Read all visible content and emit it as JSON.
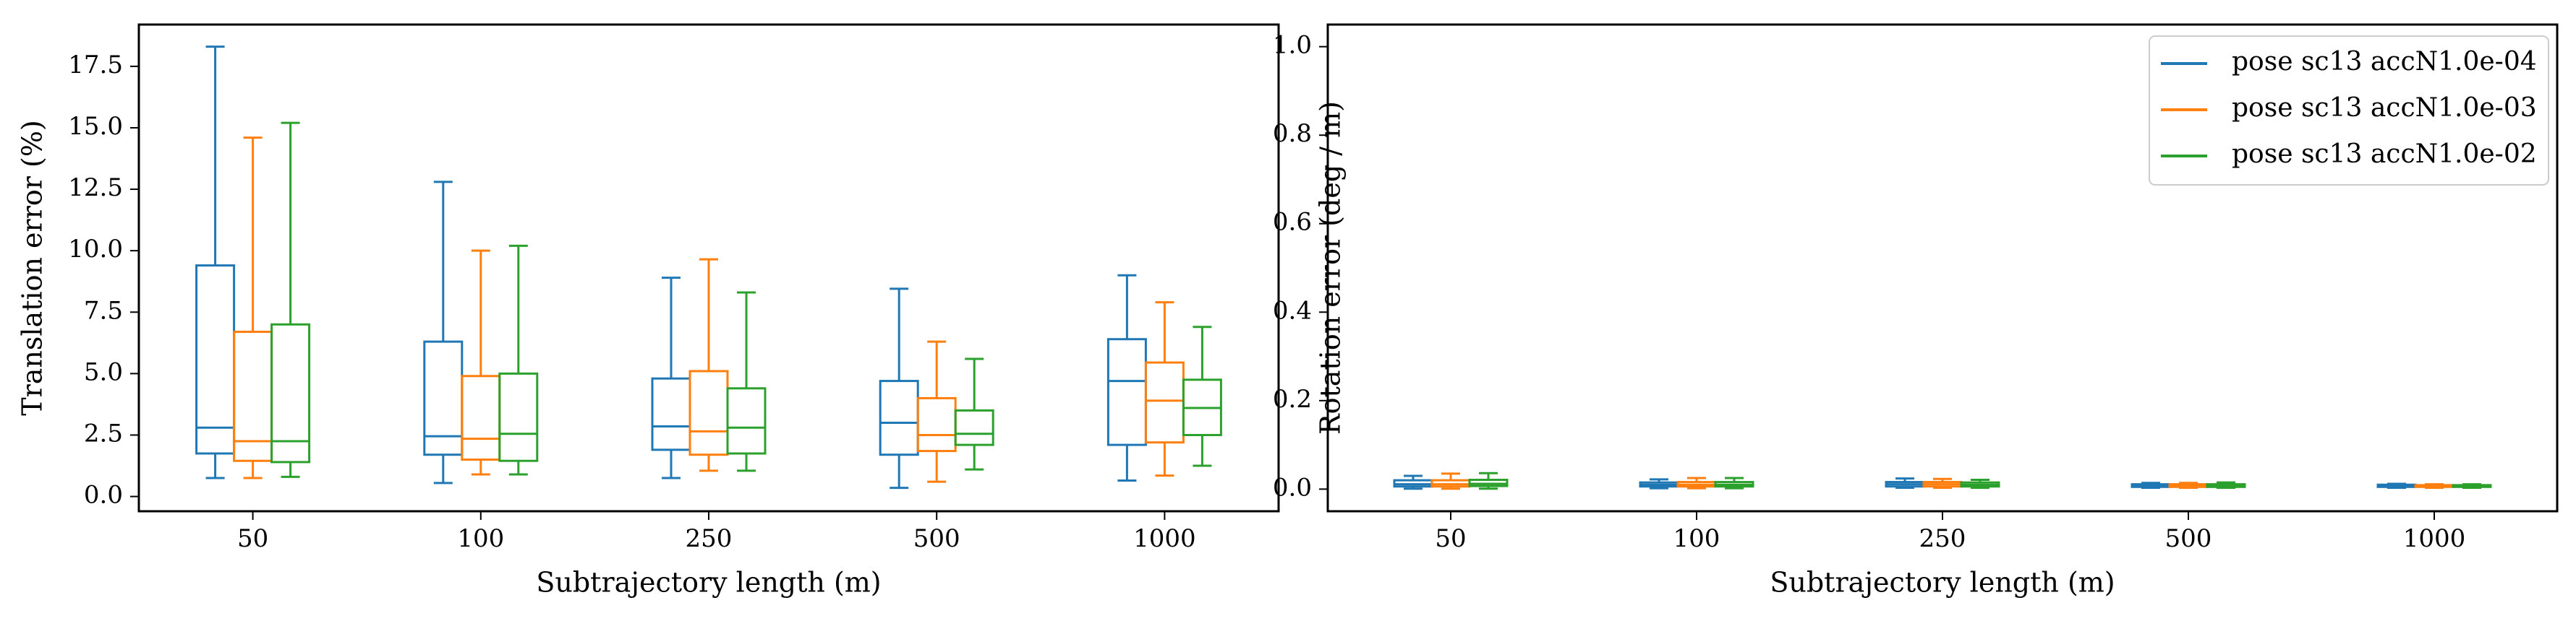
{
  "figure": {
    "background": "#ffffff"
  },
  "colors": {
    "blue": "#1f77b4",
    "orange": "#ff7f0e",
    "green": "#2ca02c"
  },
  "chart_data": [
    {
      "type": "box",
      "xlabel": "Subtrajectory length (m)",
      "ylabel": "Translation error (%)",
      "categories": [
        "50",
        "100",
        "250",
        "500",
        "1000"
      ],
      "ylim": [
        -0.6,
        19.2
      ],
      "yticks": [
        0.0,
        2.5,
        5.0,
        7.5,
        10.0,
        12.5,
        15.0,
        17.5
      ],
      "ytick_labels": [
        "0.0",
        "2.5",
        "5.0",
        "7.5",
        "10.0",
        "12.5",
        "15.0",
        "17.5"
      ],
      "grid": false,
      "series": [
        {
          "name": "pose sc13 accN1.0e-04",
          "color": "#1f77b4",
          "boxes": [
            {
              "whislo": 0.75,
              "q1": 1.75,
              "med": 2.8,
              "q3": 9.4,
              "whishi": 18.3
            },
            {
              "whislo": 0.55,
              "q1": 1.7,
              "med": 2.45,
              "q3": 6.3,
              "whishi": 12.8
            },
            {
              "whislo": 0.75,
              "q1": 1.9,
              "med": 2.85,
              "q3": 4.8,
              "whishi": 8.9
            },
            {
              "whislo": 0.35,
              "q1": 1.7,
              "med": 3.0,
              "q3": 4.7,
              "whishi": 8.45
            },
            {
              "whislo": 0.65,
              "q1": 2.1,
              "med": 4.7,
              "q3": 6.4,
              "whishi": 9.0
            }
          ]
        },
        {
          "name": "pose sc13 accN1.0e-03",
          "color": "#ff7f0e",
          "boxes": [
            {
              "whislo": 0.75,
              "q1": 1.45,
              "med": 2.25,
              "q3": 6.7,
              "whishi": 14.6
            },
            {
              "whislo": 0.9,
              "q1": 1.5,
              "med": 2.35,
              "q3": 4.9,
              "whishi": 10.0
            },
            {
              "whislo": 1.05,
              "q1": 1.7,
              "med": 2.65,
              "q3": 5.1,
              "whishi": 9.65
            },
            {
              "whislo": 0.6,
              "q1": 1.85,
              "med": 2.5,
              "q3": 4.0,
              "whishi": 6.3
            },
            {
              "whislo": 0.85,
              "q1": 2.2,
              "med": 3.9,
              "q3": 5.45,
              "whishi": 7.9
            }
          ]
        },
        {
          "name": "pose sc13 accN1.0e-02",
          "color": "#2ca02c",
          "boxes": [
            {
              "whislo": 0.8,
              "q1": 1.4,
              "med": 2.25,
              "q3": 7.0,
              "whishi": 15.2
            },
            {
              "whislo": 0.9,
              "q1": 1.45,
              "med": 2.55,
              "q3": 5.0,
              "whishi": 10.2
            },
            {
              "whislo": 1.05,
              "q1": 1.75,
              "med": 2.8,
              "q3": 4.4,
              "whishi": 8.3
            },
            {
              "whislo": 1.1,
              "q1": 2.1,
              "med": 2.55,
              "q3": 3.5,
              "whishi": 5.6
            },
            {
              "whislo": 1.25,
              "q1": 2.5,
              "med": 3.6,
              "q3": 4.75,
              "whishi": 6.9
            }
          ]
        }
      ]
    },
    {
      "type": "box",
      "xlabel": "Subtrajectory length (m)",
      "ylabel": "Rotation error (deg / m)",
      "categories": [
        "50",
        "100",
        "250",
        "500",
        "1000"
      ],
      "ylim": [
        -0.05,
        1.05
      ],
      "yticks": [
        0.0,
        0.2,
        0.4,
        0.6,
        0.8,
        1.0
      ],
      "ytick_labels": [
        "0.0",
        "0.2",
        "0.4",
        "0.6",
        "0.8",
        "1.0"
      ],
      "grid": false,
      "legend": {
        "placement": "upper-right"
      },
      "series": [
        {
          "name": "pose sc13 accN1.0e-04",
          "color": "#1f77b4",
          "boxes": [
            {
              "whislo": 0.001,
              "q1": 0.006,
              "med": 0.011,
              "q3": 0.02,
              "whishi": 0.03
            },
            {
              "whislo": 0.002,
              "q1": 0.006,
              "med": 0.01,
              "q3": 0.015,
              "whishi": 0.022
            },
            {
              "whislo": 0.003,
              "q1": 0.006,
              "med": 0.011,
              "q3": 0.016,
              "whishi": 0.024
            },
            {
              "whislo": 0.003,
              "q1": 0.005,
              "med": 0.008,
              "q3": 0.011,
              "whishi": 0.014
            },
            {
              "whislo": 0.003,
              "q1": 0.005,
              "med": 0.007,
              "q3": 0.01,
              "whishi": 0.012
            }
          ]
        },
        {
          "name": "pose sc13 accN1.0e-03",
          "color": "#ff7f0e",
          "boxes": [
            {
              "whislo": 0.001,
              "q1": 0.006,
              "med": 0.011,
              "q3": 0.02,
              "whishi": 0.035
            },
            {
              "whislo": 0.002,
              "q1": 0.006,
              "med": 0.01,
              "q3": 0.016,
              "whishi": 0.025
            },
            {
              "whislo": 0.003,
              "q1": 0.006,
              "med": 0.011,
              "q3": 0.016,
              "whishi": 0.023
            },
            {
              "whislo": 0.003,
              "q1": 0.005,
              "med": 0.008,
              "q3": 0.011,
              "whishi": 0.014
            },
            {
              "whislo": 0.003,
              "q1": 0.005,
              "med": 0.007,
              "q3": 0.009,
              "whishi": 0.011
            }
          ]
        },
        {
          "name": "pose sc13 accN1.0e-02",
          "color": "#2ca02c",
          "boxes": [
            {
              "whislo": 0.001,
              "q1": 0.007,
              "med": 0.012,
              "q3": 0.021,
              "whishi": 0.036
            },
            {
              "whislo": 0.002,
              "q1": 0.006,
              "med": 0.01,
              "q3": 0.016,
              "whishi": 0.025
            },
            {
              "whislo": 0.003,
              "q1": 0.006,
              "med": 0.01,
              "q3": 0.015,
              "whishi": 0.021
            },
            {
              "whislo": 0.003,
              "q1": 0.005,
              "med": 0.008,
              "q3": 0.011,
              "whishi": 0.015
            },
            {
              "whislo": 0.003,
              "q1": 0.005,
              "med": 0.007,
              "q3": 0.009,
              "whishi": 0.011
            }
          ]
        }
      ]
    }
  ]
}
